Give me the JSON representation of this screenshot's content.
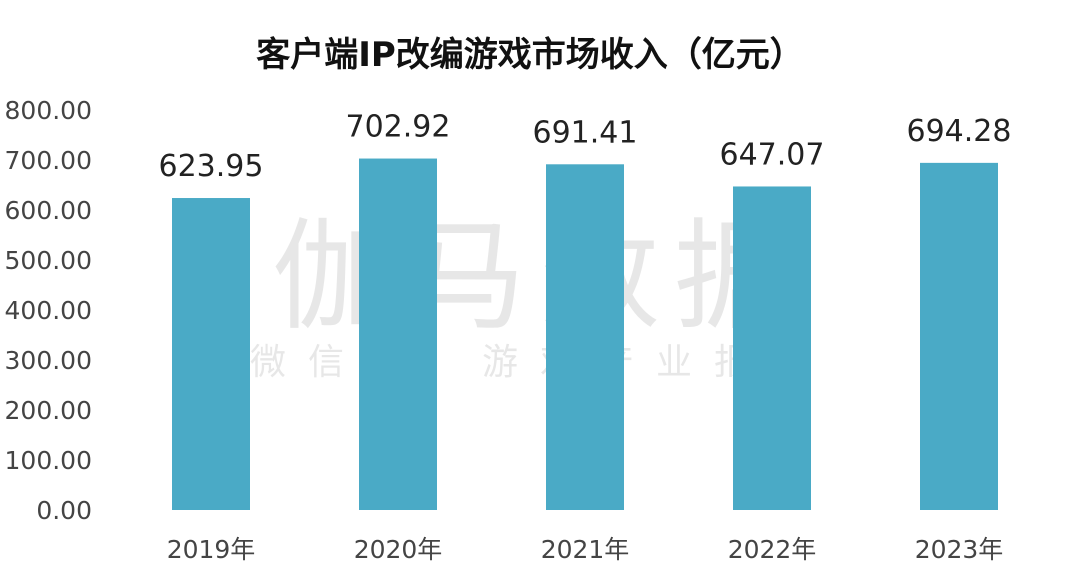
{
  "watermark": {
    "main": "伽马数据",
    "sub": "微信号：游戏产业报告"
  },
  "chart_data": {
    "type": "bar",
    "title": "客户端IP改编游戏市场收入（亿元）",
    "xlabel": "",
    "ylabel": "",
    "categories": [
      "2019年",
      "2020年",
      "2021年",
      "2022年",
      "2023年"
    ],
    "values": [
      623.95,
      702.92,
      691.41,
      647.07,
      694.28
    ],
    "value_labels": [
      "623.95",
      "702.92",
      "691.41",
      "647.07",
      "694.28"
    ],
    "ylim": [
      0,
      800
    ],
    "yticks": [
      "0.00",
      "100.00",
      "200.00",
      "300.00",
      "400.00",
      "500.00",
      "600.00",
      "700.00",
      "800.00"
    ],
    "grid": false,
    "legend": "none",
    "colors": {
      "bar": "#4aaac6"
    }
  }
}
